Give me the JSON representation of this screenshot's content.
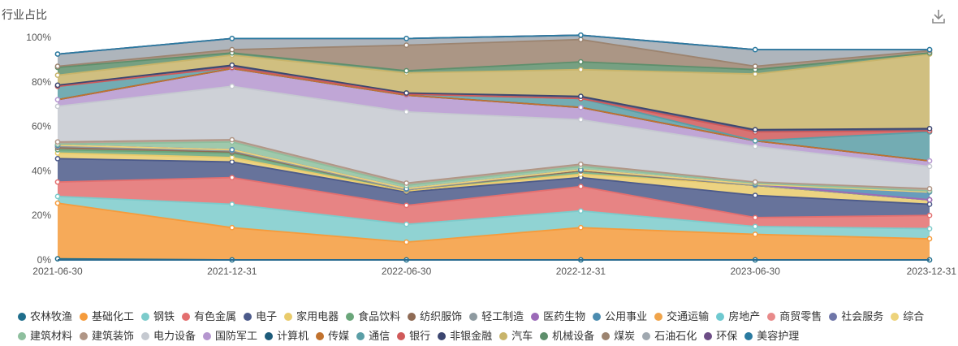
{
  "title": "行业占比",
  "download_icon": "download-icon",
  "chart_data": {
    "type": "area",
    "stacked": true,
    "normalized_percent": true,
    "title": "行业占比",
    "x": [
      "2021-06-30",
      "2021-12-31",
      "2022-06-30",
      "2022-12-31",
      "2023-06-30",
      "2023-12-31"
    ],
    "ylim": [
      0,
      100
    ],
    "yticks": [
      "0%",
      "20%",
      "40%",
      "60%",
      "80%",
      "100%"
    ],
    "grid": false,
    "legend_position": "bottom",
    "series": [
      {
        "name": "农林牧渔",
        "color": "#1f6e8c",
        "values": [
          0.5,
          0,
          0,
          0,
          0,
          0
        ]
      },
      {
        "name": "基础化工",
        "color": "#f59b3c",
        "values": [
          25,
          14.5,
          8,
          14.5,
          11.5,
          9.5
        ]
      },
      {
        "name": "钢铁",
        "color": "#7ccbcb",
        "values": [
          3,
          10.5,
          8,
          7.5,
          3.5,
          4.5
        ]
      },
      {
        "name": "有色金属",
        "color": "#e36f6f",
        "values": [
          6.5,
          12,
          8.5,
          11,
          4,
          6
        ]
      },
      {
        "name": "电子",
        "color": "#4c5a8a",
        "values": [
          10.5,
          7,
          6,
          4,
          10,
          5
        ]
      },
      {
        "name": "家用电器",
        "color": "#e9cb6b",
        "values": [
          2.5,
          2,
          0.5,
          1.5,
          4.5,
          2
        ]
      },
      {
        "name": "食品饮料",
        "color": "#6aa67a",
        "values": [
          1.5,
          2,
          0.5,
          1.5,
          0,
          0
        ]
      },
      {
        "name": "纺织服饰",
        "color": "#8f6b55",
        "values": [
          1,
          0.5,
          0,
          0,
          0,
          0
        ]
      },
      {
        "name": "轻工制造",
        "color": "#8e9aa0",
        "values": [
          0.5,
          0.5,
          0,
          0.5,
          0,
          0
        ]
      },
      {
        "name": "医药生物",
        "color": "#9b6ab8",
        "values": [
          0.5,
          0.5,
          0.5,
          0,
          0.5,
          0
        ]
      },
      {
        "name": "公用事业",
        "color": "#4c8cb0",
        "values": [
          0,
          0,
          0,
          0,
          0,
          3.5
        ]
      },
      {
        "name": "交通运输",
        "color": "#f0a44a",
        "values": [
          0,
          0,
          0,
          0,
          0,
          0
        ]
      },
      {
        "name": "房地产",
        "color": "#6fc9d0",
        "values": [
          0,
          0,
          0,
          0,
          0,
          0
        ]
      },
      {
        "name": "商贸零售",
        "color": "#e88a8a",
        "values": [
          0,
          0,
          0,
          0,
          0,
          0
        ]
      },
      {
        "name": "社会服务",
        "color": "#6f76a8",
        "values": [
          0,
          0,
          0,
          0,
          0,
          0
        ]
      },
      {
        "name": "综合",
        "color": "#edd37b",
        "values": [
          0,
          0,
          0,
          0,
          0,
          0
        ]
      },
      {
        "name": "建筑材料",
        "color": "#8ebf9e",
        "values": [
          0.5,
          3.5,
          1.5,
          1.5,
          0.5,
          0.5
        ]
      },
      {
        "name": "建筑装饰",
        "color": "#b09686",
        "values": [
          1,
          1,
          1,
          1,
          0.5,
          1
        ]
      },
      {
        "name": "电力设备",
        "color": "#c5c9d0",
        "values": [
          16,
          24,
          32,
          20,
          16,
          10
        ]
      },
      {
        "name": "国防军工",
        "color": "#b596cf",
        "values": [
          3,
          8,
          7.5,
          5.5,
          2.5,
          2.5
        ]
      },
      {
        "name": "计算机",
        "color": "#1d5b7a",
        "values": [
          0,
          0,
          0,
          0,
          0,
          0
        ]
      },
      {
        "name": "传媒",
        "color": "#c1722e",
        "values": [
          0,
          0,
          0,
          0,
          0,
          0
        ]
      },
      {
        "name": "通信",
        "color": "#5a9ea6",
        "values": [
          6,
          0.5,
          0.5,
          4,
          0,
          13
        ]
      },
      {
        "name": "银行",
        "color": "#d05a5a",
        "values": [
          0,
          0,
          0,
          0,
          4,
          0.5
        ]
      },
      {
        "name": "非银金融",
        "color": "#3c4670",
        "values": [
          0.5,
          1,
          0.5,
          1,
          1,
          1
        ]
      },
      {
        "name": "汽车",
        "color": "#c8b46a",
        "values": [
          4.5,
          4.5,
          9,
          12,
          25,
          33.5
        ]
      },
      {
        "name": "机械设备",
        "color": "#5e8f6c",
        "values": [
          3.5,
          1,
          1,
          3.5,
          2,
          0.5
        ]
      },
      {
        "name": "煤炭",
        "color": "#9c8470",
        "values": [
          0.5,
          1.5,
          11.5,
          10,
          1.5,
          1
        ]
      },
      {
        "name": "石油石化",
        "color": "#a0a8b0",
        "values": [
          5.5,
          5,
          3,
          2,
          7.5,
          0.5
        ]
      },
      {
        "name": "环保",
        "color": "#6d4d86",
        "values": [
          0,
          0,
          0,
          0,
          0,
          0
        ]
      },
      {
        "name": "美容护理",
        "color": "#2a7aa0",
        "values": [
          0,
          0,
          0,
          0,
          0,
          0
        ]
      }
    ]
  }
}
